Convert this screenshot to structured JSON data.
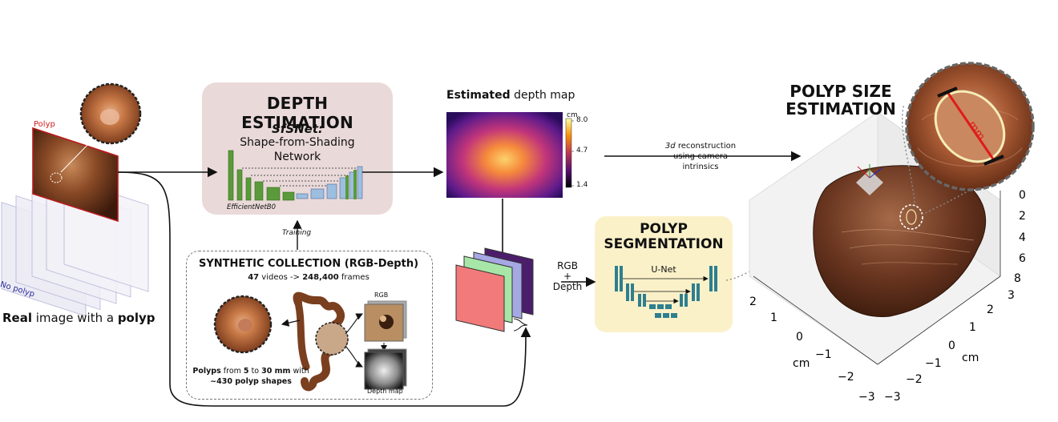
{
  "left_panel": {
    "polyp_label": "Polyp",
    "no_polyp_label": "No polyp",
    "caption": {
      "pre": "Real",
      "mid": " image with a ",
      "post": "polyp"
    }
  },
  "depth_estimation": {
    "title": "DEPTH ESTIMATION",
    "network_name": "SfSNet:",
    "network_desc_1": "Shape-from-Shading",
    "network_desc_2": "Network",
    "encoder_label": "EfficientNetB0"
  },
  "training_label": "Training",
  "synthetic": {
    "title": "SYNTHETIC  COLLECTION (RGB-Depth)",
    "videos": "47",
    "videos_text": " videos -> ",
    "frames": "248,400",
    "frames_text": " frames",
    "rgb_label": "RGB",
    "depth_map_label": "Depth map",
    "polyps_caption": {
      "b1": "Polyps",
      "t1": " from ",
      "b2": "5",
      "t2": " to ",
      "b3": "30 mm",
      "t3": " with",
      "b4": "~430 polyp shapes"
    }
  },
  "depth_map": {
    "caption_bold": "Estimated",
    "caption_rest": " depth map",
    "colorbar_unit": "cm",
    "colorbar_ticks": [
      "8.0",
      "4.7",
      "1.4"
    ]
  },
  "reconstruction": {
    "line1_italic": "3d",
    "line1_rest": " reconstruction",
    "line2": "using camera",
    "line3": "intrinsics"
  },
  "rgb_depth": {
    "line1": "RGB",
    "line2": "+",
    "line3": "Depth"
  },
  "segmentation": {
    "title_1": "POLYP",
    "title_2": "SEGMENTATION",
    "network": "U-Net"
  },
  "size_estimation": {
    "title_1": "POLYP SIZE",
    "title_2": "ESTIMATION",
    "measure_label": "mm",
    "z_ticks": [
      "0",
      "2",
      "4",
      "6",
      "8"
    ],
    "x_ticks": [
      "2",
      "1",
      "0",
      "−1",
      "−2",
      "−3"
    ],
    "y_ticks": [
      "3",
      "2",
      "1",
      "0",
      "−1",
      "−2",
      "−3"
    ],
    "x_unit": "cm",
    "y_unit": "cm"
  },
  "colors": {
    "depth_box": "#ead9d9",
    "seg_box": "#fbf1c9",
    "encoder_green": "#5a9a3a",
    "decoder_blue": "#9dbedf",
    "unet_teal": "#2e7f8f",
    "polyp_red": "#d02020"
  }
}
